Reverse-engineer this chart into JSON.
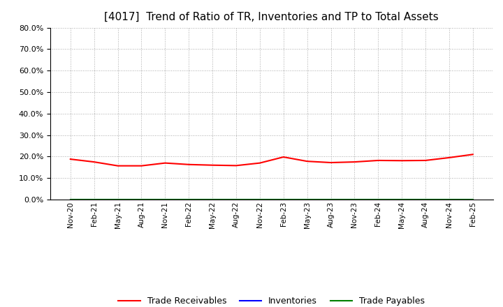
{
  "title": "[4017]  Trend of Ratio of TR, Inventories and TP to Total Assets",
  "title_fontsize": 11,
  "ylim": [
    0.0,
    0.8
  ],
  "yticks": [
    0.0,
    0.1,
    0.2,
    0.3,
    0.4,
    0.5,
    0.6,
    0.7,
    0.8
  ],
  "x_labels": [
    "Nov-20",
    "Feb-21",
    "May-21",
    "Aug-21",
    "Nov-21",
    "Feb-22",
    "May-22",
    "Aug-22",
    "Nov-22",
    "Feb-23",
    "May-23",
    "Aug-23",
    "Nov-23",
    "Feb-24",
    "May-24",
    "Aug-24",
    "Nov-24",
    "Feb-25"
  ],
  "trade_receivables": [
    0.188,
    0.175,
    0.157,
    0.157,
    0.17,
    0.163,
    0.16,
    0.158,
    0.17,
    0.198,
    0.178,
    0.172,
    0.175,
    0.182,
    0.181,
    0.182,
    0.195,
    0.21
  ],
  "inventories": [
    0.0,
    0.0,
    0.0,
    0.0,
    0.0,
    0.0,
    0.0,
    0.0,
    0.0,
    0.0,
    0.0,
    0.0,
    0.0,
    0.0,
    0.0,
    0.0,
    0.0,
    0.0
  ],
  "trade_payables": [
    0.0,
    0.0,
    0.0,
    0.0,
    0.0,
    0.0,
    0.0,
    0.0,
    0.0,
    0.0,
    0.0,
    0.0,
    0.0,
    0.0,
    0.0,
    0.0,
    0.0,
    0.0
  ],
  "tr_color": "#ff0000",
  "inv_color": "#0000ff",
  "tp_color": "#008000",
  "background_color": "#ffffff",
  "grid_color": "#aaaaaa",
  "legend_labels": [
    "Trade Receivables",
    "Inventories",
    "Trade Payables"
  ]
}
